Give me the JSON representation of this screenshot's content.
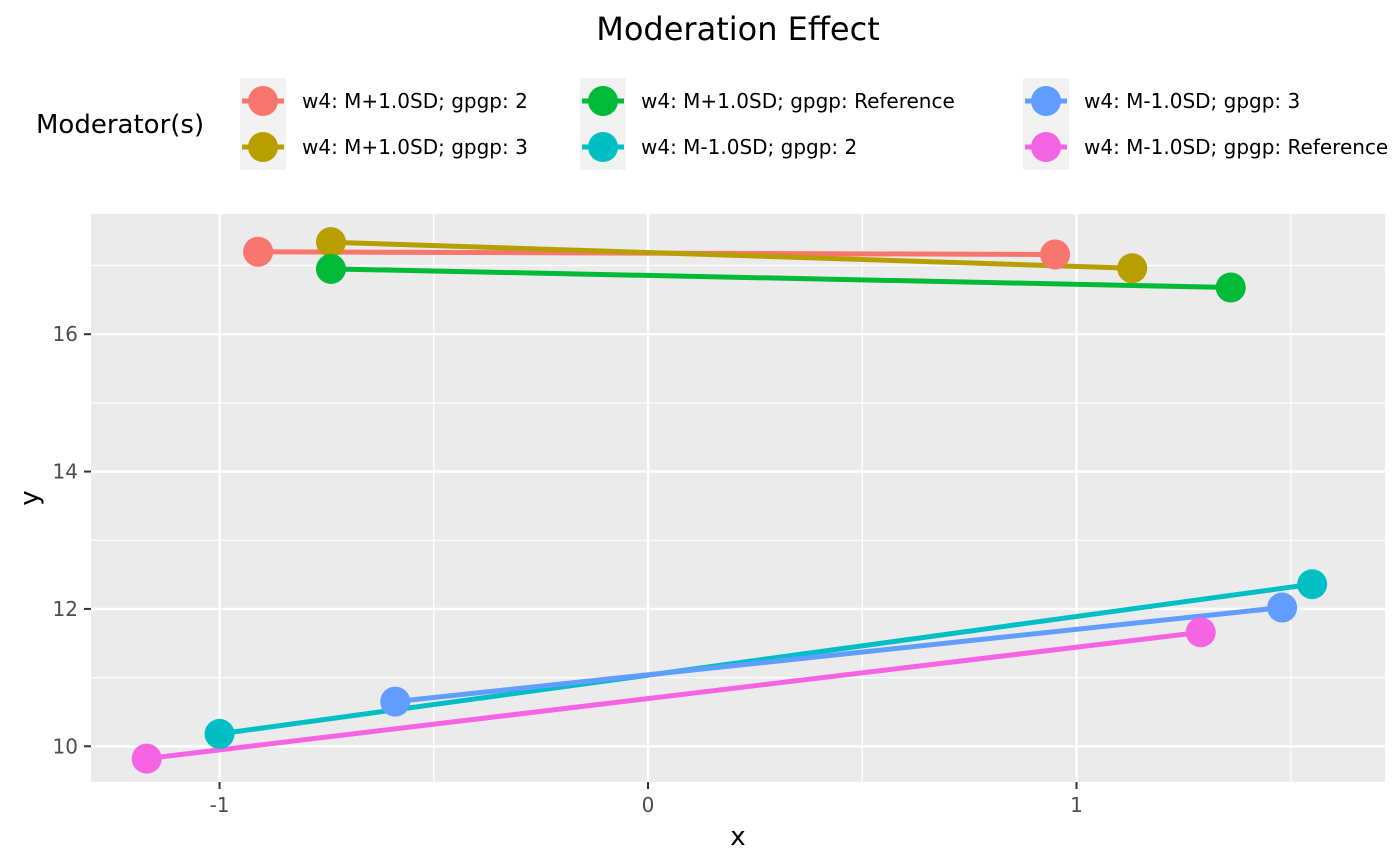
{
  "chart_data": {
    "type": "line",
    "title": "Moderation Effect",
    "xlabel": "x",
    "ylabel": "y",
    "xlim": [
      -1.3,
      1.72
    ],
    "ylim": [
      9.48,
      17.75
    ],
    "xticks": [
      -1,
      0,
      1
    ],
    "xtick_labels": [
      "-1",
      "0",
      "1"
    ],
    "yticks": [
      10,
      12,
      14,
      16
    ],
    "ytick_labels": [
      "10",
      "12",
      "14",
      "16"
    ],
    "x_minor_grid": [
      -0.5,
      0.5,
      1.5
    ],
    "y_minor_grid": [
      11,
      13,
      15,
      17
    ],
    "grid": true,
    "legend": {
      "title": "Moderator(s)",
      "position": "top",
      "columns": 3
    },
    "series": [
      {
        "name": "w4: M+1.0SD; gpgp: 2",
        "color": "#F8766D",
        "x": [
          -0.91,
          0.95
        ],
        "y": [
          17.2,
          17.16
        ]
      },
      {
        "name": "w4: M+1.0SD; gpgp: 3",
        "color": "#B79F00",
        "x": [
          -0.74,
          1.13
        ],
        "y": [
          17.34,
          16.96
        ]
      },
      {
        "name": "w4: M+1.0SD; gpgp: Reference",
        "color": "#00BA38",
        "x": [
          -0.74,
          1.36
        ],
        "y": [
          16.95,
          16.68
        ]
      },
      {
        "name": "w4: M-1.0SD; gpgp: 2",
        "color": "#00BFC4",
        "x": [
          -1.0,
          1.55
        ],
        "y": [
          10.18,
          12.36
        ]
      },
      {
        "name": "w4: M-1.0SD; gpgp: 3",
        "color": "#619CFF",
        "x": [
          -0.59,
          1.48
        ],
        "y": [
          10.65,
          12.02
        ]
      },
      {
        "name": "w4: M-1.0SD; gpgp: Reference",
        "color": "#F564E3",
        "x": [
          -1.17,
          1.29
        ],
        "y": [
          9.82,
          11.66
        ]
      }
    ]
  }
}
